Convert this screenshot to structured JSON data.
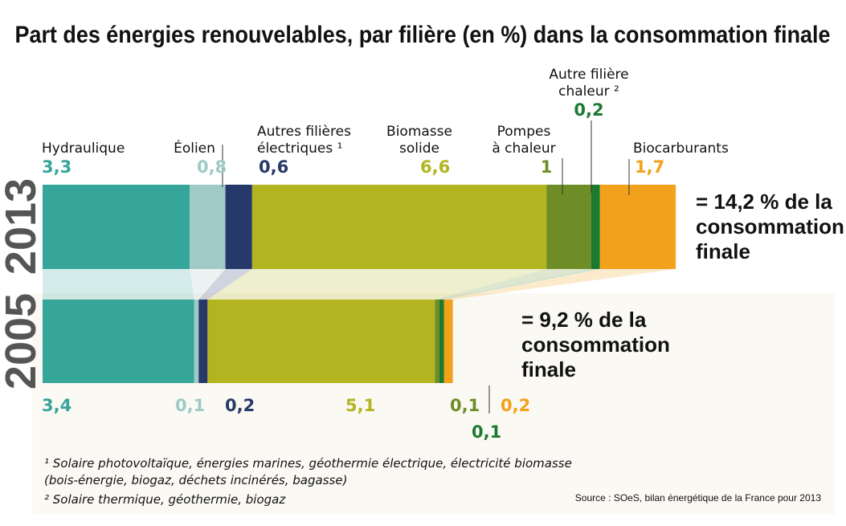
{
  "chart_data": {
    "type": "bar",
    "orientation": "horizontal-stacked",
    "title": "Part des énergies renouvelables, par filière (en %) dans la consommation finale",
    "categories": [
      "2013",
      "2005"
    ],
    "series": [
      {
        "name": "Hydraulique",
        "values": [
          3.3,
          3.4
        ],
        "labels": [
          "3,3",
          "3,4"
        ],
        "color": "#36a59a"
      },
      {
        "name": "Éolien",
        "values": [
          0.8,
          0.1
        ],
        "labels": [
          "0,8",
          "0,1"
        ],
        "color": "#9fcac6"
      },
      {
        "name": "Autres filières électriques",
        "label_lines": [
          "Autres filières",
          "électriques ¹"
        ],
        "values": [
          0.6,
          0.2
        ],
        "labels": [
          "0,6",
          "0,2"
        ],
        "color": "#27396a"
      },
      {
        "name": "Biomasse solide",
        "label_lines": [
          "Biomasse",
          "solide"
        ],
        "values": [
          6.6,
          5.1
        ],
        "labels": [
          "6,6",
          "5,1"
        ],
        "color": "#b2b520"
      },
      {
        "name": "Pompes à chaleur",
        "label_lines": [
          "Pompes",
          "à chaleur"
        ],
        "values": [
          1,
          0.1
        ],
        "labels": [
          "1",
          "0,1"
        ],
        "color": "#6e8d26"
      },
      {
        "name": "Autre filière chaleur",
        "label_lines": [
          "Autre filière",
          "chaleur ²"
        ],
        "values": [
          0.2,
          0.1
        ],
        "labels": [
          "0,2",
          "0,1"
        ],
        "color": "#1c7a30"
      },
      {
        "name": "Biocarburants",
        "values": [
          1.7,
          0.2
        ],
        "labels": [
          "1,7",
          "0,2"
        ],
        "color": "#f2a11a"
      }
    ],
    "totals": [
      {
        "year": "2013",
        "lines": [
          "= 14,2 % de  la",
          "consommation",
          "finale"
        ]
      },
      {
        "year": "2005",
        "lines": [
          "= 9,2 % de  la",
          "consommation",
          "finale"
        ]
      }
    ]
  },
  "footnotes": [
    "¹ Solaire photovoltaïque, énergies marines, géothermie électrique, électricité biomasse",
    "(bois-énergie, biogaz, déchets incinérés, bagasse)",
    "² Solaire thermique, géothermie, biogaz"
  ],
  "source": "Source : SOeS, bilan énergétique de la France pour 2013"
}
